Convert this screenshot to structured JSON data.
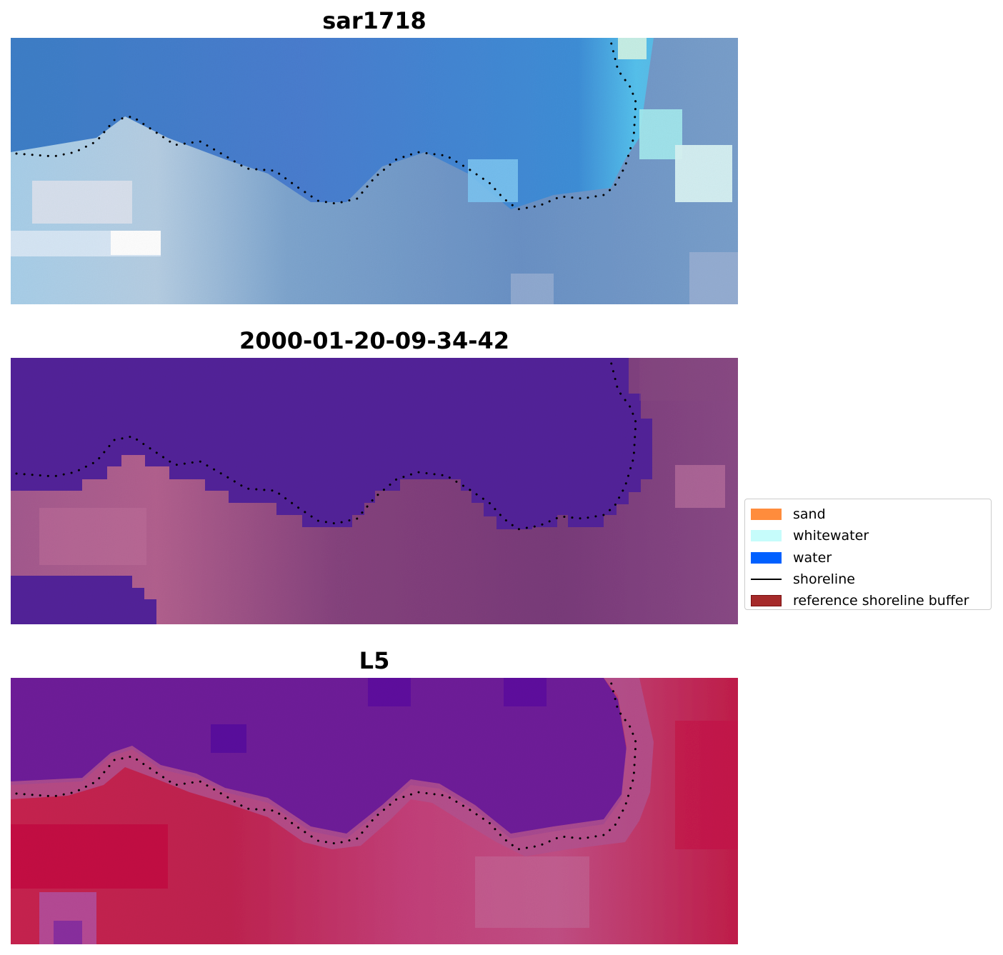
{
  "panels": [
    {
      "title": "sar1718",
      "colormap": "rgb"
    },
    {
      "title": "2000-01-20-09-34-42",
      "colormap": "classified"
    },
    {
      "title": "L5",
      "colormap": "index"
    }
  ],
  "legend": {
    "placement": "right",
    "items": [
      {
        "label": "sand",
        "type": "patch",
        "color": "#ff8c3c"
      },
      {
        "label": "whitewater",
        "type": "patch",
        "color": "#c6fcfb"
      },
      {
        "label": "water",
        "type": "patch",
        "color": "#0060ff"
      },
      {
        "label": "shoreline",
        "type": "line",
        "color": "#000000"
      },
      {
        "label": "reference shoreline buffer",
        "type": "patch",
        "color": "#a52a2a"
      }
    ]
  }
}
